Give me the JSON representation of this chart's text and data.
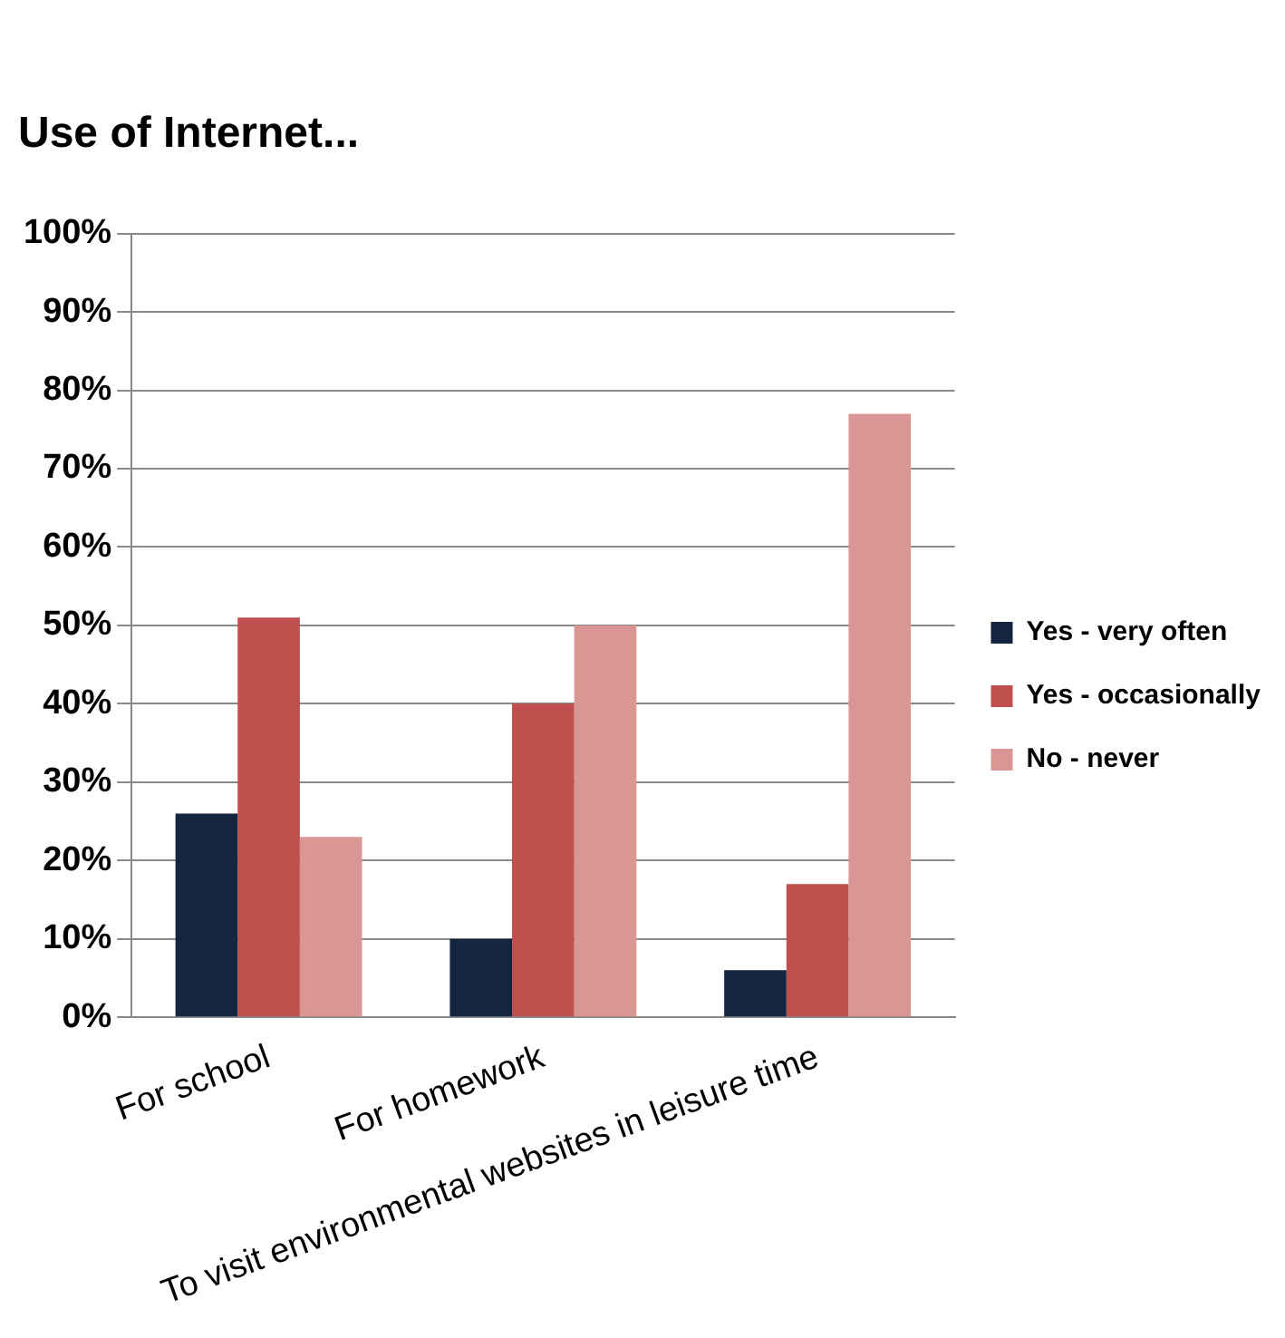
{
  "chart_data": {
    "type": "bar",
    "title": "Use of Internet...",
    "categories": [
      "For school",
      "For homework",
      "To visit environmental websites in leisure time"
    ],
    "series": [
      {
        "name": "Yes - very often",
        "color": "#14253f",
        "values": [
          26,
          10,
          6
        ]
      },
      {
        "name": "Yes - occasionally",
        "color": "#c0504d",
        "values": [
          51,
          40,
          17
        ]
      },
      {
        "name": "No - never",
        "color": "#d99694",
        "values": [
          23,
          50,
          77
        ]
      }
    ],
    "ylim": [
      0,
      100
    ],
    "yticks": [
      {
        "value": 0,
        "label": "0%"
      },
      {
        "value": 10,
        "label": "10%"
      },
      {
        "value": 20,
        "label": "20%"
      },
      {
        "value": 30,
        "label": "30%"
      },
      {
        "value": 40,
        "label": "40%"
      },
      {
        "value": 50,
        "label": "50%"
      },
      {
        "value": 60,
        "label": "60%"
      },
      {
        "value": 70,
        "label": "70%"
      },
      {
        "value": 80,
        "label": "80%"
      },
      {
        "value": 90,
        "label": "90%"
      },
      {
        "value": 100,
        "label": "100%"
      }
    ],
    "grid": "y",
    "legend": "right"
  }
}
